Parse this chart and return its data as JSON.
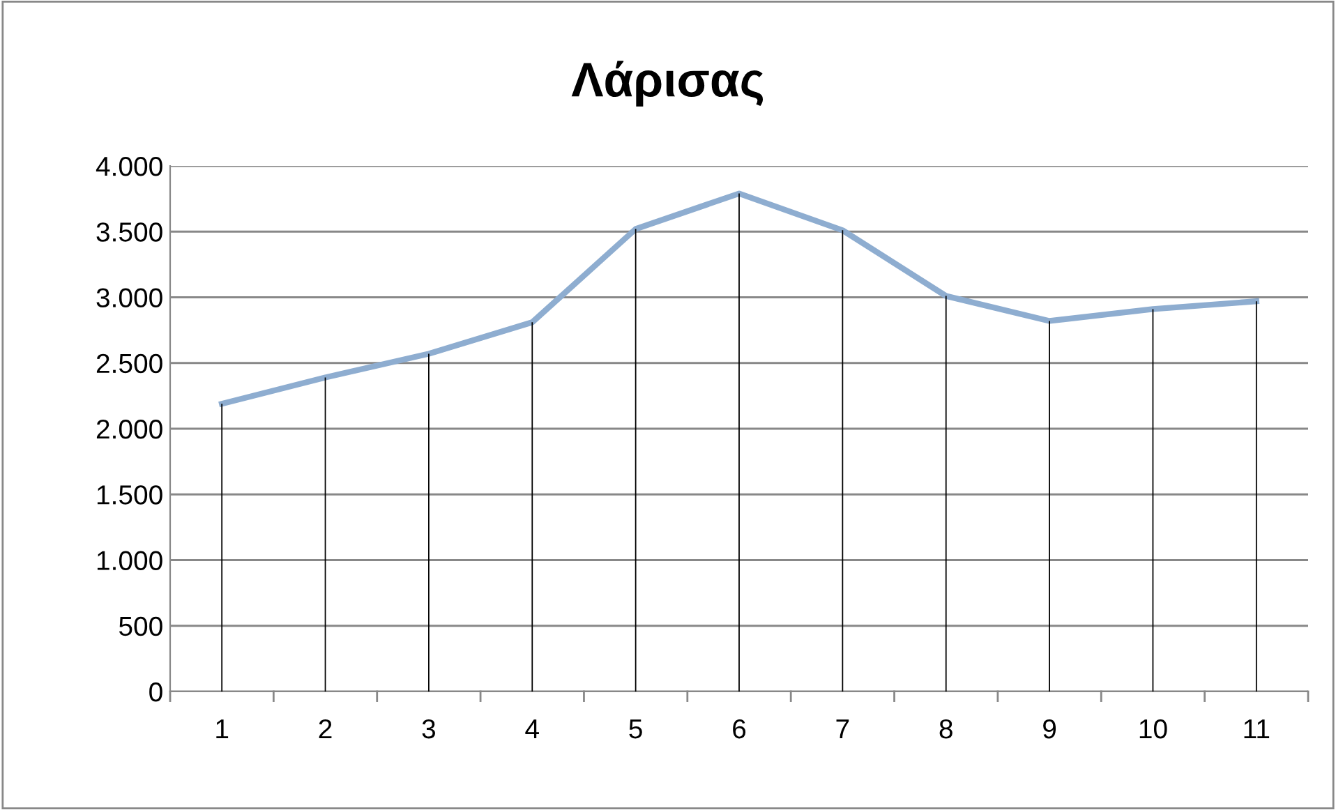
{
  "chart_data": {
    "type": "line",
    "title": "Λάρισας",
    "categories": [
      "1",
      "2",
      "3",
      "4",
      "5",
      "6",
      "7",
      "8",
      "9",
      "10",
      "11"
    ],
    "series": [
      {
        "type": "bar",
        "color": "#000000",
        "values": [
          2190,
          2390,
          2570,
          2810,
          3520,
          3790,
          3510,
          3010,
          2820,
          2910,
          2970
        ]
      },
      {
        "color": "#8eadd0",
        "marker": "none",
        "line_style": "solid",
        "values": [
          2190,
          2390,
          2570,
          2810,
          3520,
          3790,
          3510,
          3010,
          2820,
          2910,
          2970
        ]
      }
    ],
    "ylim": [
      0,
      4000
    ],
    "yticks": [
      0,
      500,
      {
        "value": 1000,
        "label": "1.000"
      },
      {
        "value": 1500,
        "label": "1.500"
      },
      {
        "value": 2000,
        "label": "2.000"
      },
      {
        "value": 2500,
        "label": "2.500"
      },
      {
        "value": 3000,
        "label": "3.000"
      },
      {
        "value": 3500,
        "label": "3.500"
      },
      {
        "value": 4000,
        "label": "4.000"
      }
    ],
    "grid": "y",
    "legend": false
  }
}
